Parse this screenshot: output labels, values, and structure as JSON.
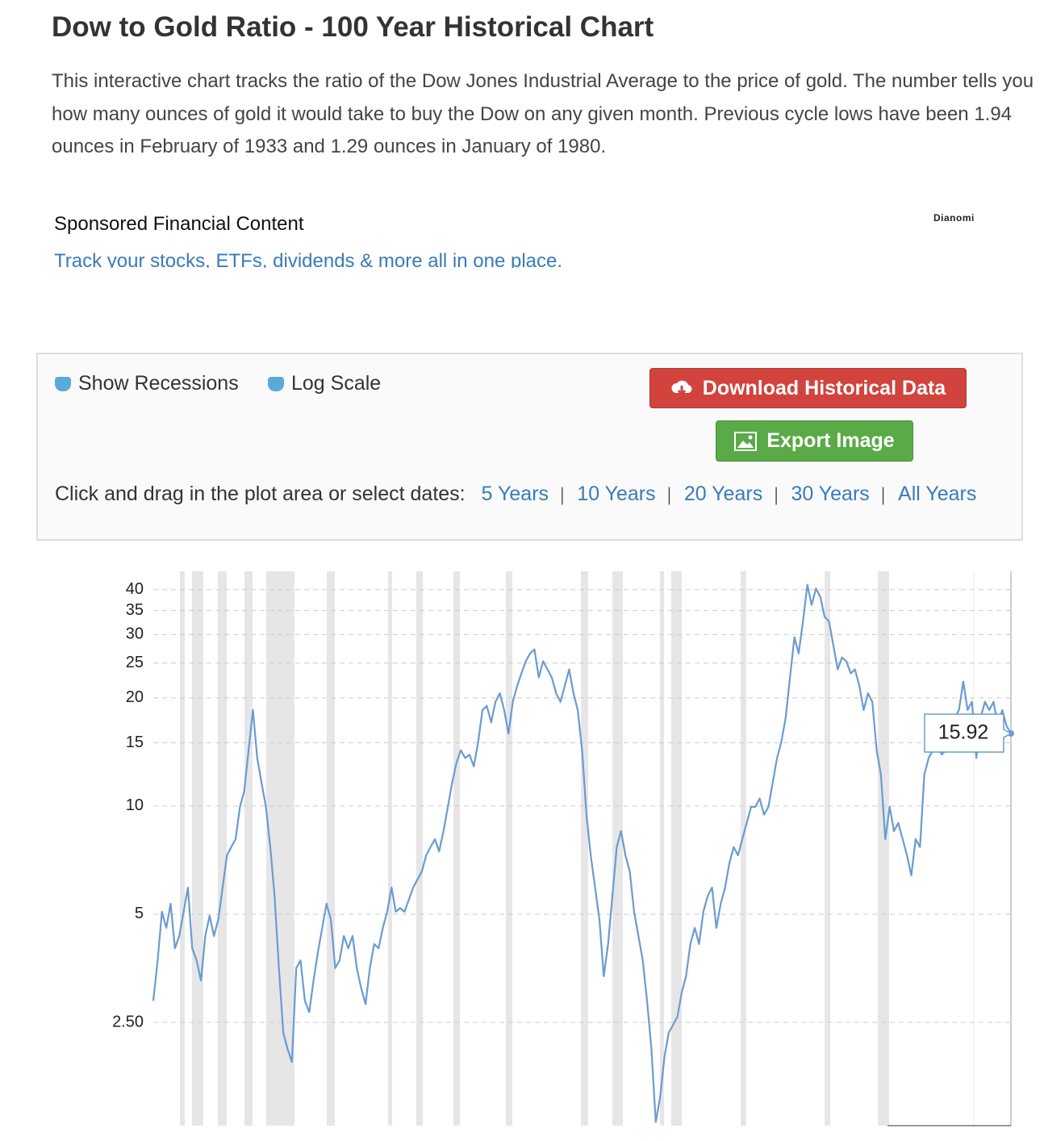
{
  "header": {
    "title": "Dow to Gold Ratio - 100 Year Historical Chart",
    "description": "This interactive chart tracks the ratio of the Dow Jones Industrial Average to the price of gold. The number tells you how many ounces of gold it would take to buy the Dow on any given month. Previous cycle lows have been 1.94 ounces in February of 1933 and 1.29 ounces in January of 1980."
  },
  "sponsored": {
    "heading": "Sponsored Financial Content",
    "brand": "Dianomi",
    "link": "Track your stocks, ETFs, dividends & more all in one place."
  },
  "controls": {
    "checkboxes": [
      "Show Recessions",
      "Log Scale"
    ],
    "buttons": [
      "Download Historical Data",
      "Export Image"
    ],
    "range_prompt": "Click and drag in the plot area or select dates:",
    "ranges": [
      "5 Years",
      "10 Years",
      "20 Years",
      "30 Years",
      "All Years"
    ]
  },
  "chart_data": {
    "type": "line",
    "color": "#6a9bd1",
    "log_scale": true,
    "grid": true,
    "ylim": [
      1.29,
      45
    ],
    "yticks": [
      {
        "value": 2.5,
        "label": "2.50"
      },
      5,
      10,
      15,
      20,
      25,
      30,
      35,
      40
    ],
    "annotation": "15.92",
    "values": [
      2.87,
      3.72,
      5.08,
      4.58,
      5.35,
      4.02,
      4.35,
      5.08,
      5.93,
      4.02,
      3.72,
      3.27,
      4.35,
      4.95,
      4.35,
      4.83,
      5.93,
      7.29,
      7.69,
      8.09,
      9.95,
      11.0,
      14.3,
      18.5,
      13.6,
      11.6,
      9.95,
      7.69,
      5.63,
      3.54,
      2.34,
      2.11,
      1.94,
      3.54,
      3.72,
      2.87,
      2.67,
      3.27,
      3.92,
      4.58,
      5.35,
      4.83,
      3.54,
      3.72,
      4.35,
      4.02,
      4.35,
      3.54,
      3.11,
      2.81,
      3.54,
      4.13,
      4.02,
      4.58,
      5.08,
      5.93,
      5.08,
      5.2,
      5.08,
      5.49,
      5.93,
      6.25,
      6.58,
      7.29,
      7.69,
      8.09,
      7.48,
      8.52,
      9.95,
      11.6,
      13.2,
      14.3,
      13.6,
      13.9,
      12.9,
      15.1,
      18.5,
      19.0,
      17.1,
      19.5,
      20.6,
      18.5,
      15.9,
      19.5,
      21.6,
      23.4,
      25.3,
      26.6,
      27.3,
      22.8,
      25.3,
      24.0,
      22.8,
      20.6,
      19.5,
      21.6,
      24.0,
      20.6,
      18.5,
      14.3,
      9.46,
      7.29,
      5.93,
      4.83,
      3.36,
      4.13,
      5.63,
      7.69,
      8.52,
      7.29,
      6.58,
      5.08,
      4.35,
      3.72,
      2.87,
      2.11,
      1.32,
      1.54,
      2.0,
      2.34,
      2.46,
      2.59,
      3.03,
      3.36,
      4.13,
      4.58,
      4.13,
      5.08,
      5.63,
      5.93,
      4.58,
      5.35,
      5.93,
      6.93,
      7.69,
      7.29,
      8.09,
      8.97,
      9.95,
      9.95,
      10.5,
      9.46,
      9.95,
      11.6,
      13.6,
      15.1,
      17.6,
      22.8,
      29.5,
      26.6,
      32.7,
      41.3,
      36.3,
      40.3,
      38.2,
      33.6,
      32.7,
      28.0,
      24.0,
      25.9,
      25.3,
      23.4,
      24.0,
      21.6,
      18.5,
      20.6,
      19.5,
      14.3,
      12.2,
      8.09,
      9.95,
      8.52,
      8.97,
      8.09,
      7.29,
      6.41,
      8.09,
      7.69,
      12.2,
      13.6,
      14.3,
      15.1,
      13.9,
      14.3,
      15.9,
      17.6,
      18.5,
      22.2,
      18.5,
      19.5,
      13.6,
      17.6,
      19.5,
      18.5,
      19.5,
      16.7,
      18.5,
      16.7,
      15.92
    ]
  }
}
